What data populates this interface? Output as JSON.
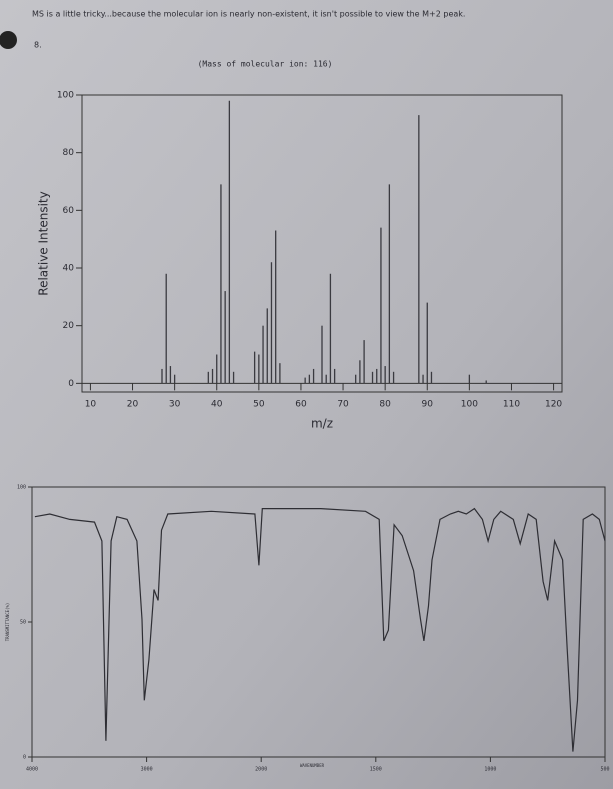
{
  "header": {
    "note": "MS is a little tricky...because the molecular ion is nearly non-existent, it isn't possible to view the M+2 peak.",
    "number": "8."
  },
  "chart_data": [
    {
      "type": "bar",
      "title": "(Mass of molecular ion: 116)",
      "x_label": "m/z",
      "y_label": "Relative Intensity",
      "x": [
        27,
        28,
        29,
        30,
        38,
        39,
        40,
        41,
        42,
        43,
        44,
        49,
        50,
        51,
        52,
        53,
        54,
        55,
        61,
        62,
        63,
        65,
        66,
        67,
        68,
        73,
        74,
        75,
        77,
        78,
        79,
        80,
        81,
        82,
        88,
        89,
        90,
        91,
        100,
        104
      ],
      "values": [
        5,
        38,
        6,
        3,
        4,
        5,
        10,
        69,
        32,
        98,
        4,
        11,
        10,
        20,
        26,
        42,
        53,
        7,
        2,
        3,
        5,
        20,
        3,
        38,
        5,
        3,
        8,
        15,
        4,
        5,
        54,
        6,
        69,
        4,
        93,
        3,
        28,
        4,
        3,
        1
      ],
      "color": "#3a3a40",
      "xlim": [
        8,
        122
      ],
      "xticks": [
        10,
        20,
        30,
        40,
        50,
        60,
        70,
        80,
        90,
        100,
        110,
        120
      ],
      "ylim": [
        -3,
        100
      ],
      "yticks": [
        0,
        20,
        40,
        60,
        80,
        100
      ]
    },
    {
      "type": "line",
      "x_label": "WAVENUMBER",
      "y_label": "TRANSMITTANCE(%)",
      "x": [
        3975,
        3845,
        3670,
        3455,
        3390,
        3355,
        3310,
        3260,
        3170,
        3085,
        3040,
        3020,
        2980,
        2935,
        2900,
        2870,
        2815,
        2435,
        2055,
        2020,
        1995,
        1740,
        1545,
        1485,
        1465,
        1445,
        1420,
        1385,
        1335,
        1305,
        1290,
        1270,
        1255,
        1220,
        1175,
        1140,
        1105,
        1070,
        1035,
        1010,
        985,
        955,
        900,
        870,
        835,
        800,
        770,
        750,
        720,
        685,
        665,
        640,
        620,
        595,
        555,
        525,
        500
      ],
      "values": [
        89,
        90,
        88,
        87,
        80,
        6,
        80,
        89,
        88,
        80,
        51,
        21,
        36,
        62,
        58,
        84,
        90,
        91,
        90,
        71,
        92,
        92,
        91,
        88,
        43,
        47,
        86,
        82,
        69,
        51,
        43,
        56,
        73,
        88,
        90,
        91,
        90,
        92,
        88,
        80,
        88,
        91,
        88,
        79,
        90,
        88,
        65,
        58,
        80,
        73,
        40,
        2,
        21,
        88,
        90,
        88,
        80
      ],
      "color": "#2e2e34",
      "xlim": [
        4000,
        500
      ],
      "xticks": [
        4000,
        3000,
        2000,
        1500,
        1000,
        500
      ],
      "ylim": [
        0,
        100
      ],
      "yticks": [
        0,
        50,
        100
      ]
    }
  ]
}
